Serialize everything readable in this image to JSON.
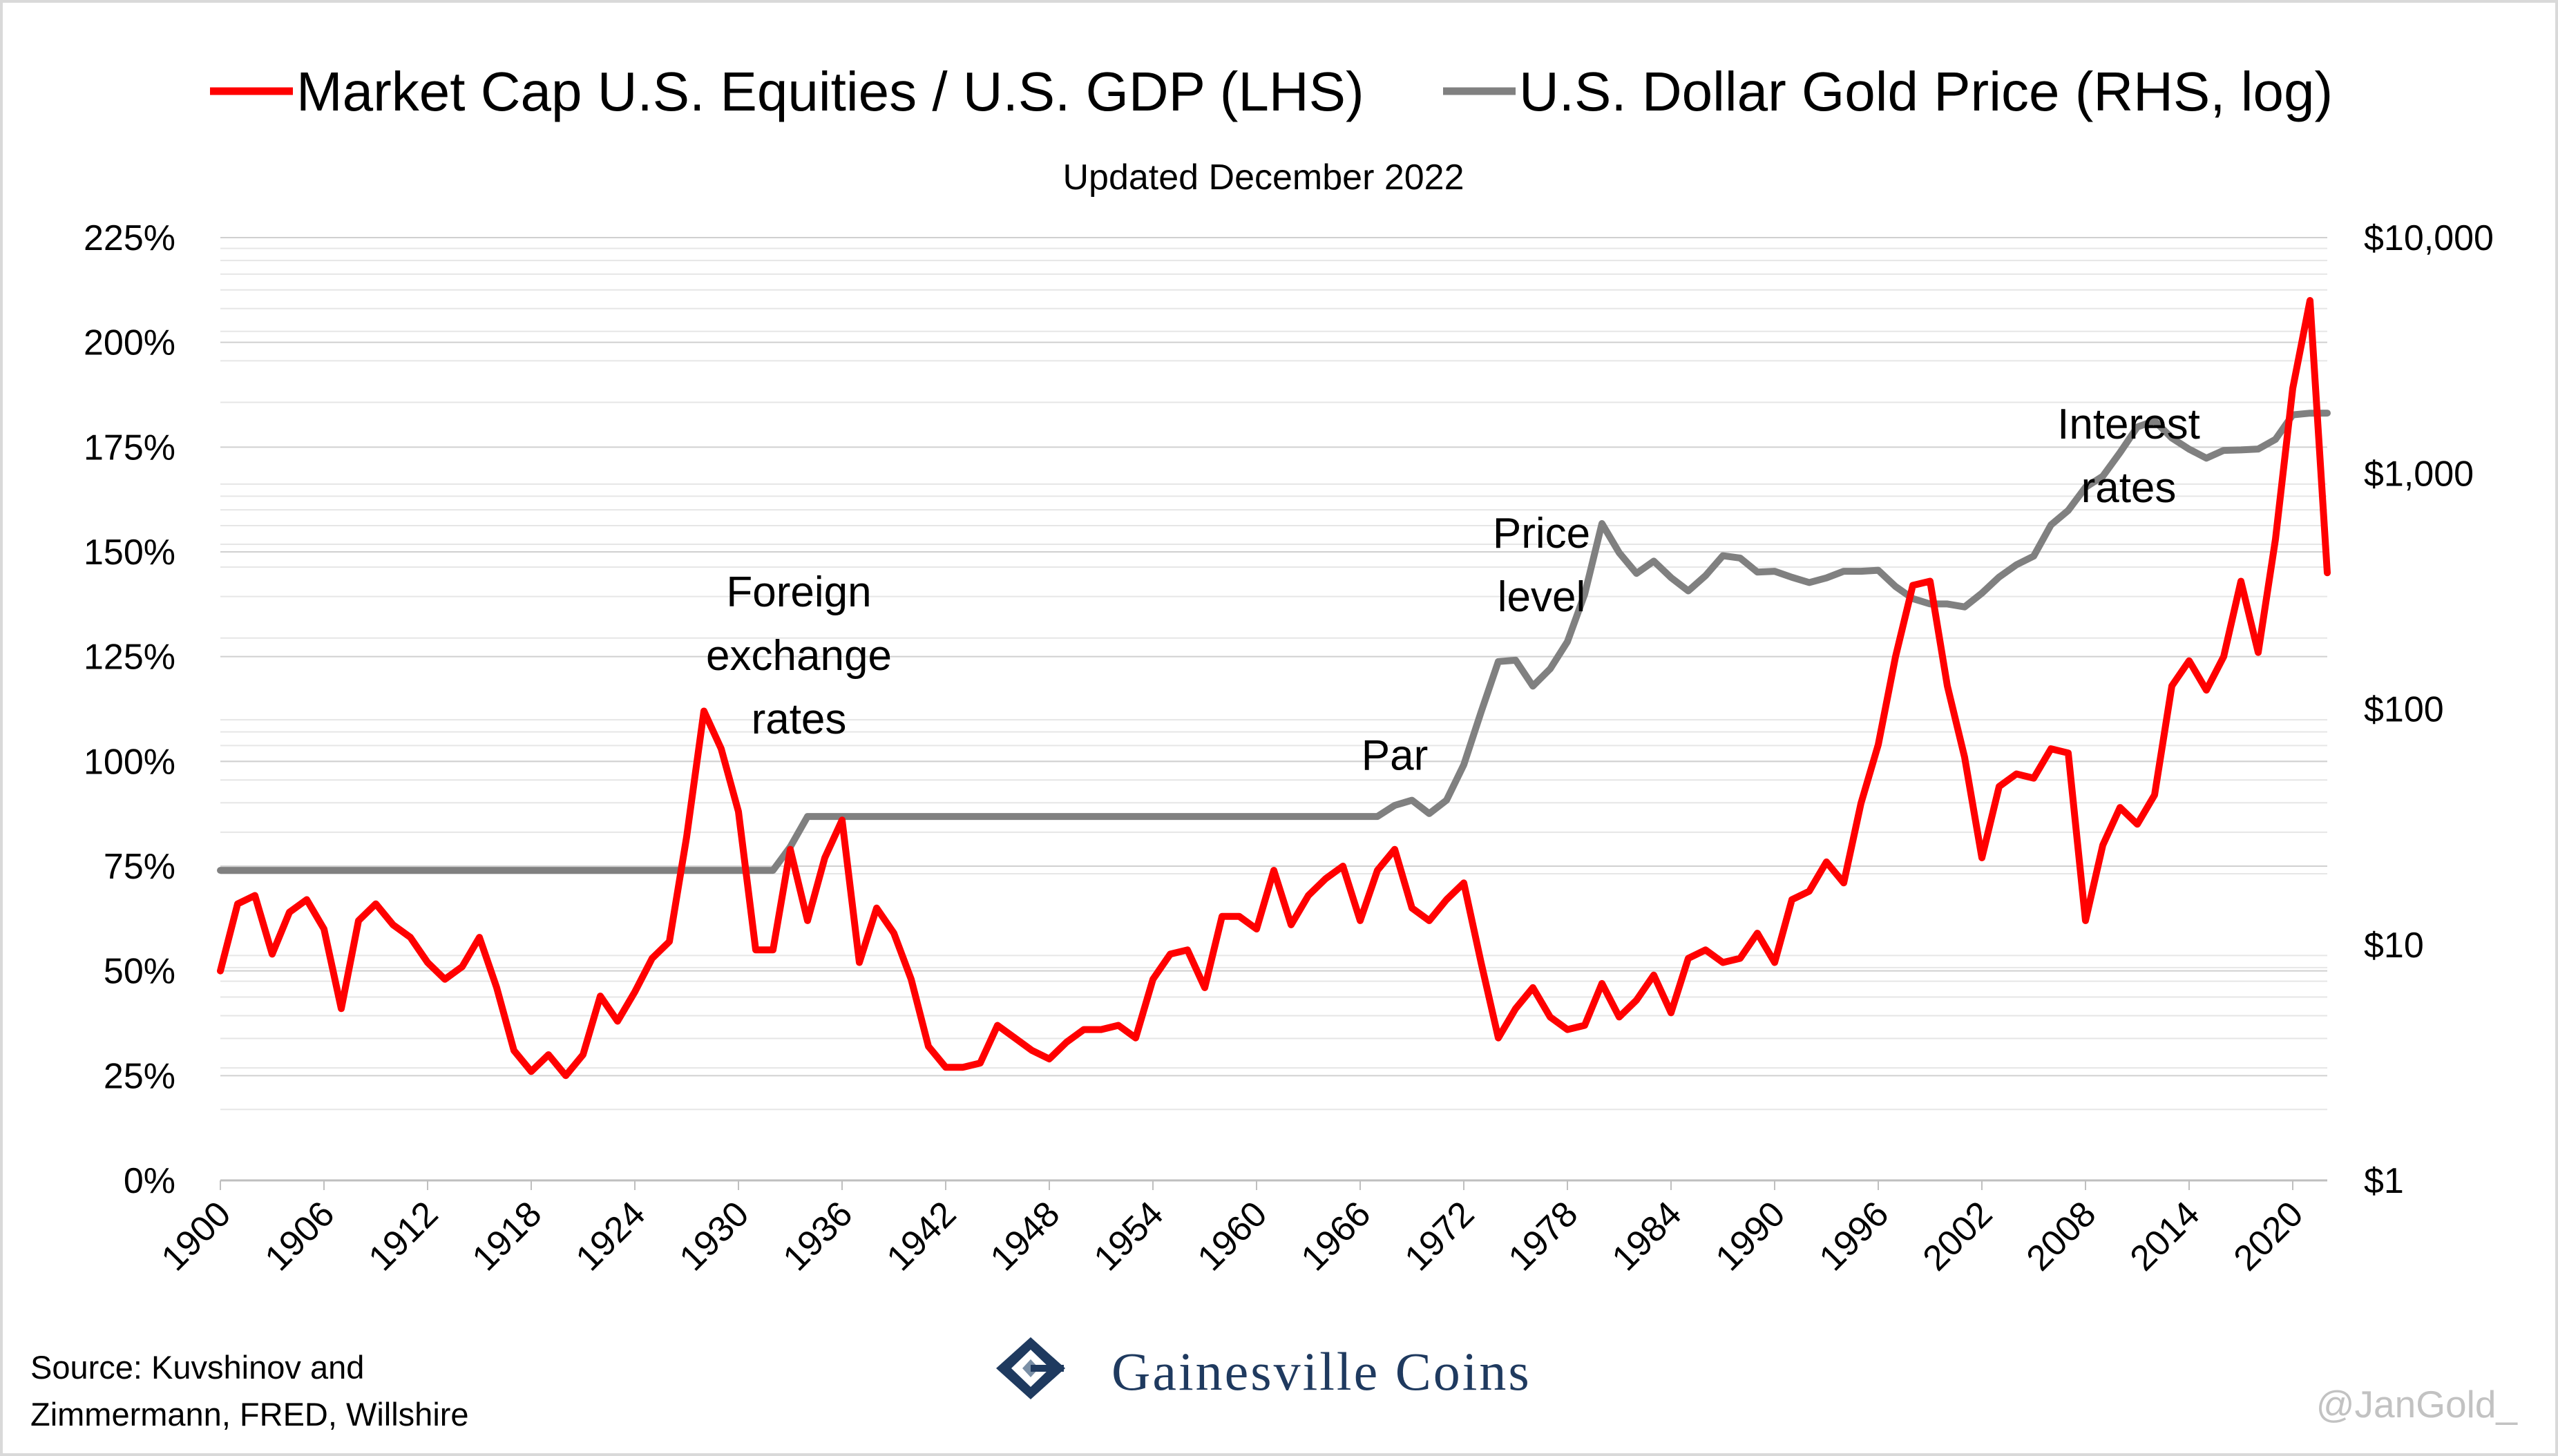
{
  "chart_data": {
    "type": "line",
    "subtitle": "Updated December 2022",
    "x_tick_labels": [
      "1900",
      "1906",
      "1912",
      "1918",
      "1924",
      "1930",
      "1936",
      "1942",
      "1948",
      "1954",
      "1960",
      "1966",
      "1972",
      "1978",
      "1984",
      "1990",
      "1996",
      "2002",
      "2008",
      "2014",
      "2020"
    ],
    "y_left_tick_labels": [
      "0%",
      "25%",
      "50%",
      "75%",
      "100%",
      "125%",
      "150%",
      "175%",
      "200%",
      "225%"
    ],
    "y_right_tick_labels": [
      "$1",
      "$10",
      "$100",
      "$1,000",
      "$10,000"
    ],
    "xlim": [
      1900,
      2022
    ],
    "ylim_left": [
      0,
      225
    ],
    "ylim_right": [
      1,
      10000
    ],
    "y_right_scale": "log",
    "grid": "horizontal minor and major gridlines",
    "legend_position": "top",
    "series": [
      {
        "name": "Market Cap U.S. Equities / U.S. GDP (LHS)",
        "axis": "left",
        "color": "#ff0000",
        "points": [
          [
            1900,
            50
          ],
          [
            1901,
            66
          ],
          [
            1902,
            68
          ],
          [
            1903,
            54
          ],
          [
            1904,
            64
          ],
          [
            1905,
            67
          ],
          [
            1906,
            60
          ],
          [
            1907,
            41
          ],
          [
            1908,
            62
          ],
          [
            1909,
            66
          ],
          [
            1910,
            61
          ],
          [
            1911,
            58
          ],
          [
            1912,
            52
          ],
          [
            1913,
            48
          ],
          [
            1914,
            51
          ],
          [
            1915,
            58
          ],
          [
            1916,
            46
          ],
          [
            1917,
            31
          ],
          [
            1918,
            26
          ],
          [
            1919,
            30
          ],
          [
            1920,
            25
          ],
          [
            1921,
            30
          ],
          [
            1922,
            44
          ],
          [
            1923,
            38
          ],
          [
            1924,
            45
          ],
          [
            1925,
            53
          ],
          [
            1926,
            57
          ],
          [
            1927,
            82
          ],
          [
            1928,
            112
          ],
          [
            1929,
            103
          ],
          [
            1930,
            88
          ],
          [
            1931,
            55
          ],
          [
            1932,
            55
          ],
          [
            1933,
            79
          ],
          [
            1934,
            62
          ],
          [
            1935,
            77
          ],
          [
            1936,
            86
          ],
          [
            1937,
            52
          ],
          [
            1938,
            65
          ],
          [
            1939,
            59
          ],
          [
            1940,
            48
          ],
          [
            1941,
            32
          ],
          [
            1942,
            27
          ],
          [
            1943,
            27
          ],
          [
            1944,
            28
          ],
          [
            1945,
            37
          ],
          [
            1946,
            34
          ],
          [
            1947,
            31
          ],
          [
            1948,
            29
          ],
          [
            1949,
            33
          ],
          [
            1950,
            36
          ],
          [
            1951,
            36
          ],
          [
            1952,
            37
          ],
          [
            1953,
            34
          ],
          [
            1954,
            48
          ],
          [
            1955,
            54
          ],
          [
            1956,
            55
          ],
          [
            1957,
            46
          ],
          [
            1958,
            63
          ],
          [
            1959,
            63
          ],
          [
            1960,
            60
          ],
          [
            1961,
            74
          ],
          [
            1962,
            61
          ],
          [
            1963,
            68
          ],
          [
            1964,
            72
          ],
          [
            1965,
            75
          ],
          [
            1966,
            62
          ],
          [
            1967,
            74
          ],
          [
            1968,
            79
          ],
          [
            1969,
            65
          ],
          [
            1970,
            62
          ],
          [
            1971,
            67
          ],
          [
            1972,
            71
          ],
          [
            1973,
            52
          ],
          [
            1974,
            34
          ],
          [
            1975,
            41
          ],
          [
            1976,
            46
          ],
          [
            1977,
            39
          ],
          [
            1978,
            36
          ],
          [
            1979,
            37
          ],
          [
            1980,
            47
          ],
          [
            1981,
            39
          ],
          [
            1982,
            43
          ],
          [
            1983,
            49
          ],
          [
            1984,
            40
          ],
          [
            1985,
            53
          ],
          [
            1986,
            55
          ],
          [
            1987,
            52
          ],
          [
            1988,
            53
          ],
          [
            1989,
            59
          ],
          [
            1990,
            52
          ],
          [
            1991,
            67
          ],
          [
            1992,
            69
          ],
          [
            1993,
            76
          ],
          [
            1994,
            71
          ],
          [
            1995,
            90
          ],
          [
            1996,
            104
          ],
          [
            1997,
            125
          ],
          [
            1998,
            142
          ],
          [
            1999,
            143
          ],
          [
            2000,
            118
          ],
          [
            2001,
            101
          ],
          [
            2002,
            77
          ],
          [
            2003,
            94
          ],
          [
            2004,
            97
          ],
          [
            2005,
            96
          ],
          [
            2006,
            103
          ],
          [
            2007,
            102
          ],
          [
            2008,
            62
          ],
          [
            2009,
            80
          ],
          [
            2010,
            89
          ],
          [
            2011,
            85
          ],
          [
            2012,
            92
          ],
          [
            2013,
            118
          ],
          [
            2014,
            124
          ],
          [
            2015,
            117
          ],
          [
            2016,
            125
          ],
          [
            2017,
            143
          ],
          [
            2018,
            126
          ],
          [
            2019,
            153
          ],
          [
            2020,
            189
          ],
          [
            2021,
            210
          ],
          [
            2022,
            145
          ]
        ]
      },
      {
        "name": "U.S. Dollar Gold Price (RHS, log)",
        "axis": "right",
        "color": "#808080",
        "points": [
          [
            1900,
            20.67
          ],
          [
            1931,
            20.67
          ],
          [
            1932,
            20.67
          ],
          [
            1933,
            26
          ],
          [
            1934,
            35
          ],
          [
            1935,
            35
          ],
          [
            1967,
            35
          ],
          [
            1968,
            39
          ],
          [
            1969,
            41
          ],
          [
            1970,
            36
          ],
          [
            1971,
            41
          ],
          [
            1972,
            58
          ],
          [
            1973,
            97
          ],
          [
            1974,
            159
          ],
          [
            1975,
            161
          ],
          [
            1976,
            125
          ],
          [
            1977,
            148
          ],
          [
            1978,
            193
          ],
          [
            1979,
            307
          ],
          [
            1980,
            612
          ],
          [
            1981,
            460
          ],
          [
            1982,
            376
          ],
          [
            1983,
            424
          ],
          [
            1984,
            361
          ],
          [
            1985,
            317
          ],
          [
            1986,
            368
          ],
          [
            1987,
            447
          ],
          [
            1988,
            437
          ],
          [
            1989,
            381
          ],
          [
            1990,
            384
          ],
          [
            1991,
            362
          ],
          [
            1992,
            344
          ],
          [
            1993,
            360
          ],
          [
            1994,
            384
          ],
          [
            1995,
            384
          ],
          [
            1996,
            388
          ],
          [
            1997,
            331
          ],
          [
            1998,
            294
          ],
          [
            1999,
            279
          ],
          [
            2000,
            279
          ],
          [
            2001,
            271
          ],
          [
            2002,
            310
          ],
          [
            2003,
            363
          ],
          [
            2004,
            409
          ],
          [
            2005,
            445
          ],
          [
            2006,
            604
          ],
          [
            2007,
            696
          ],
          [
            2008,
            872
          ],
          [
            2009,
            972
          ],
          [
            2010,
            1225
          ],
          [
            2011,
            1572
          ],
          [
            2012,
            1669
          ],
          [
            2013,
            1411
          ],
          [
            2014,
            1266
          ],
          [
            2015,
            1160
          ],
          [
            2016,
            1251
          ],
          [
            2017,
            1257
          ],
          [
            2018,
            1268
          ],
          [
            2019,
            1393
          ],
          [
            2020,
            1770
          ],
          [
            2021,
            1799
          ],
          [
            2022,
            1800
          ]
        ]
      }
    ],
    "annotations": [
      {
        "lines": [
          "Foreign",
          "exchange",
          "rates"
        ],
        "x": 1933.5,
        "y_left": 137
      },
      {
        "lines": [
          "Par"
        ],
        "x": 1968,
        "y_left": 98
      },
      {
        "lines": [
          "Price",
          "level"
        ],
        "x": 1976.5,
        "y_left": 151
      },
      {
        "lines": [
          "Interest",
          "rates"
        ],
        "x": 2010.5,
        "y_left": 177
      }
    ]
  },
  "footer": {
    "source_line1": "Source: Kuvshinov and",
    "source_line2": "Zimmermann, FRED, Willshire",
    "brand_name": "Gainesville Coins",
    "handle": "@JanGold_"
  }
}
